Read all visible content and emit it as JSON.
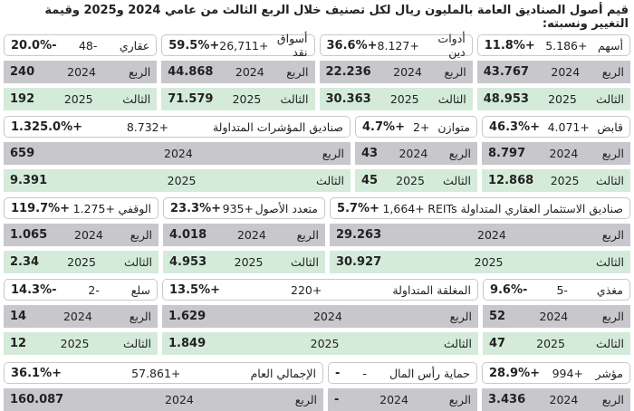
{
  "title": "قيم أصول الصناديق العامة بالمليون ريال لكل تصنيف خلال الربع الثالث من عامي 2024 و2025 وقيمة التغيير ونسبته:",
  "labels": {
    "q2024": "الربع",
    "y2024": "2024",
    "q2025": "الثالث",
    "y2025": "2025"
  },
  "bands": [
    [
      {
        "name": "أسهم",
        "change": "+5.186",
        "pct": "+11.8%",
        "v2024": "43.767",
        "v2025": "48.953"
      },
      {
        "name": "أدوات دين",
        "change": "+8.127",
        "pct": "+36.6%",
        "v2024": "22.236",
        "v2025": "30.363"
      },
      {
        "name": "أسواق نقد",
        "change": "+26,711",
        "pct": "+59.5%",
        "v2024": "44.868",
        "v2025": "71.579"
      },
      {
        "name": "عقاري",
        "change": "-48",
        "pct": "-20.0%",
        "v2024": "240",
        "v2025": "192"
      }
    ],
    [
      {
        "name": "قابض",
        "change": "+4.071",
        "pct": "+46.3%",
        "v2024": "8.797",
        "v2025": "12.868"
      },
      {
        "name": "متوازن",
        "change": "+2",
        "pct": "+4.7%",
        "v2024": "43",
        "v2025": "45"
      },
      {
        "name": "صناديق المؤشرات المتداولة",
        "change": "+8.732",
        "pct": "+1.325.0%",
        "v2024": "659",
        "v2025": "9.391"
      }
    ],
    [
      {
        "name": "صناديق الاستثمار العقاري المتداولة REITs",
        "change": "+1,664",
        "pct": "+5.7%",
        "v2024": "29.263",
        "v2025": "30.927"
      },
      {
        "name": "متعدد الأصول",
        "change": "+935",
        "pct": "+23.3%",
        "v2024": "4.018",
        "v2025": "4.953"
      },
      {
        "name": "الوقفي",
        "change": "+1.275",
        "pct": "+119.7%",
        "v2024": "1.065",
        "v2025": "2.34"
      }
    ],
    [
      {
        "name": "مغذي",
        "change": "-5",
        "pct": "-9.6%",
        "v2024": "52",
        "v2025": "47"
      },
      {
        "name": "المغلقة المتداولة",
        "change": "+220",
        "pct": "+13.5%",
        "v2024": "1.629",
        "v2025": "1.849"
      },
      {
        "name": "سلع",
        "change": "-2",
        "pct": "-14.3%",
        "v2024": "14",
        "v2025": "12"
      }
    ],
    [
      {
        "name": "مؤشر",
        "change": "+994",
        "pct": "+28.9%",
        "v2024": "3.436"
      },
      {
        "name": "حماية رأس المال",
        "change": "-",
        "pct": "-",
        "v2024": "-"
      },
      {
        "name": "الإجمالي العام",
        "change": "+57.861",
        "pct": "+36.1%",
        "v2024": "160.087"
      }
    ]
  ]
}
